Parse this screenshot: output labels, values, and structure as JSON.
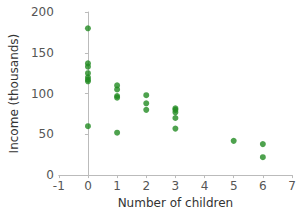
{
  "chart_data": {
    "type": "scatter",
    "x_label": "Number of children",
    "y_label": "Income (thousands)",
    "x": [
      0,
      0,
      0,
      0,
      0,
      0,
      0,
      0,
      1,
      1,
      1,
      1,
      1,
      2,
      2,
      2,
      3,
      3,
      3,
      3,
      3,
      5,
      6,
      6
    ],
    "values": [
      180,
      137,
      133,
      125,
      120,
      117,
      115,
      60,
      110,
      105,
      97,
      95,
      52,
      98,
      88,
      80,
      82,
      80,
      77,
      70,
      57,
      42,
      38,
      22
    ],
    "color": "#228b22",
    "marker": "circle",
    "xlim": [
      -1,
      7
    ],
    "xticks": [
      -1,
      0,
      1,
      2,
      3,
      4,
      5,
      6,
      7
    ],
    "ylim": [
      0,
      200
    ],
    "yticks": [
      0,
      50,
      100,
      150,
      200
    ],
    "grid": false
  }
}
